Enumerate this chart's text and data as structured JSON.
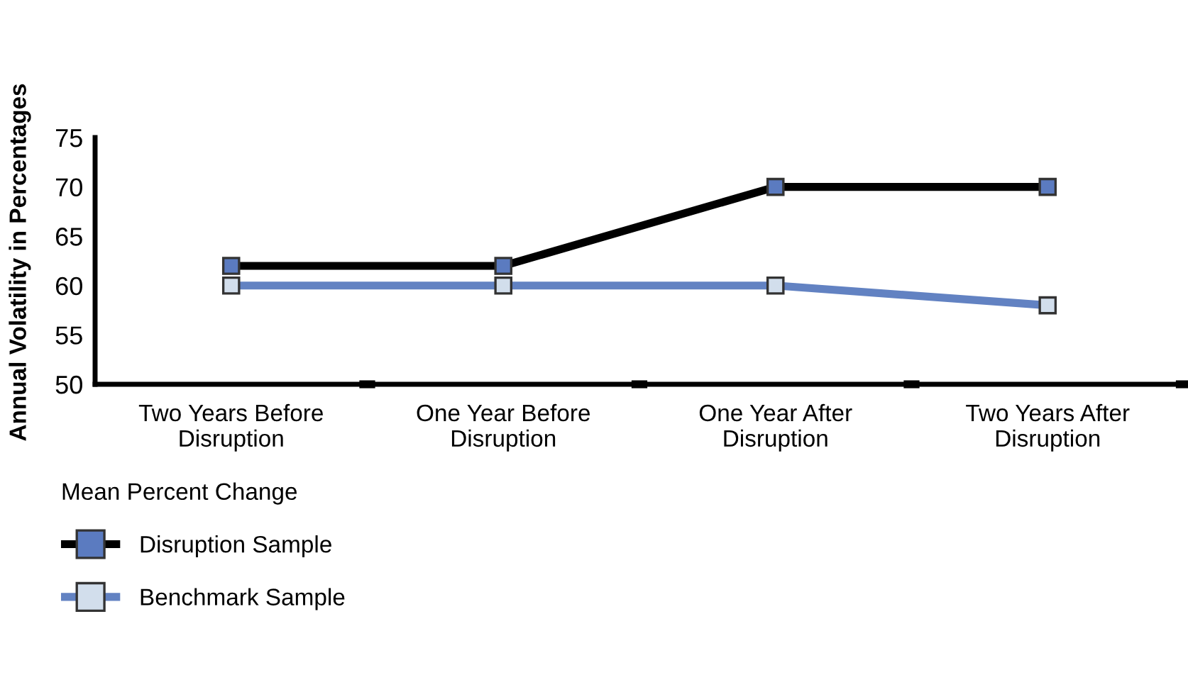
{
  "chart_data": {
    "type": "line",
    "ylabel": "Annual Volatility in Percentages",
    "legend_title": "Mean Percent Change",
    "categories": [
      "Two Years Before\nDisruption",
      "One Year Before\nDisruption",
      "One Year After\nDisruption",
      "Two Years After\nDisruption"
    ],
    "series": [
      {
        "name": "Disruption Sample",
        "color": "#000000",
        "values": [
          62,
          62,
          70,
          70
        ]
      },
      {
        "name": "Benchmark Sample",
        "color": "#6282c2",
        "values": [
          60,
          60,
          60,
          58
        ]
      }
    ],
    "ylim": [
      50,
      75
    ],
    "yticks": [
      50,
      55,
      60,
      65,
      70,
      75
    ],
    "grid": false,
    "legend": "bottom left",
    "marker": "square",
    "line_style": "solid"
  }
}
